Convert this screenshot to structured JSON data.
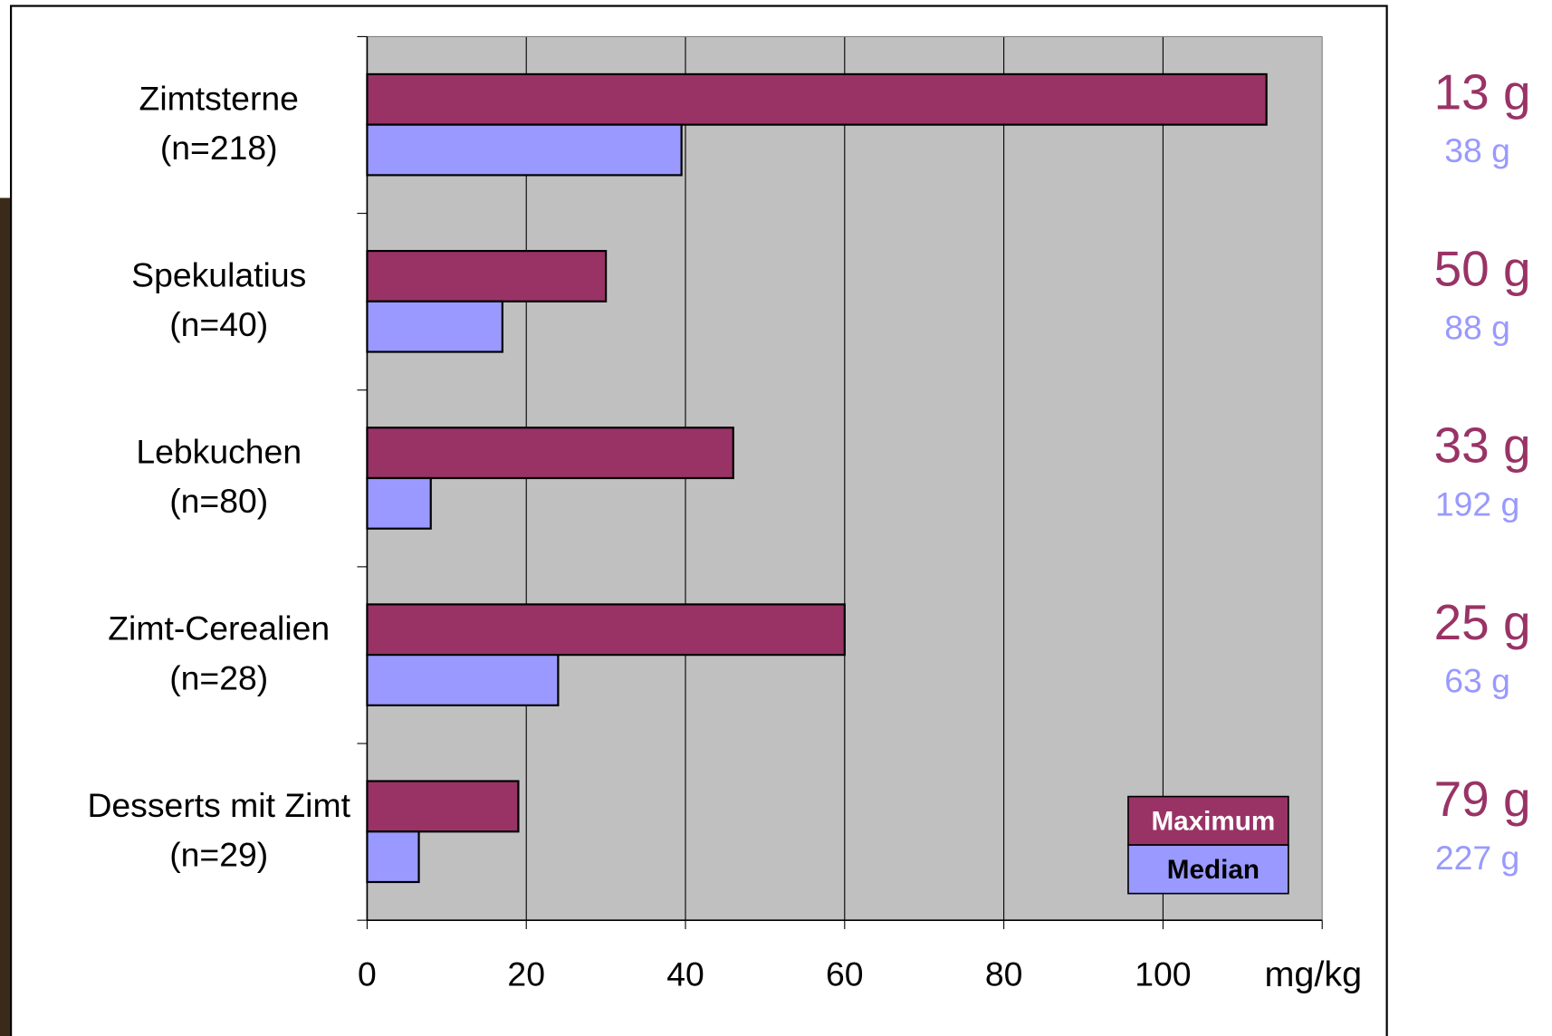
{
  "chart_data": {
    "type": "hbar",
    "categories": [
      "Zimtsterne",
      "Spekulatius",
      "Lebkuchen",
      "Zimt-Cerealien",
      "Desserts mit Zimt"
    ],
    "sample_sizes": [
      "(n=218)",
      "(n=40)",
      "(n=80)",
      "(n=28)",
      "(n=29)"
    ],
    "series": [
      {
        "name": "Maximum",
        "color": "#993366",
        "values": [
          113,
          30,
          46,
          60,
          19
        ],
        "side_labels": [
          "13 g",
          "50 g",
          "33 g",
          "25 g",
          "79 g"
        ]
      },
      {
        "name": "Median",
        "color": "#9999ff",
        "values": [
          39.5,
          17,
          8,
          24,
          6.5
        ],
        "side_labels": [
          "38 g",
          "88 g",
          "192 g",
          "63 g",
          "227 g"
        ]
      }
    ],
    "xlim": [
      0,
      120
    ],
    "xticks": [
      0,
      20,
      40,
      60,
      80,
      100
    ],
    "xlabel": "mg/kg",
    "grid": true,
    "legend": "lower-right"
  }
}
